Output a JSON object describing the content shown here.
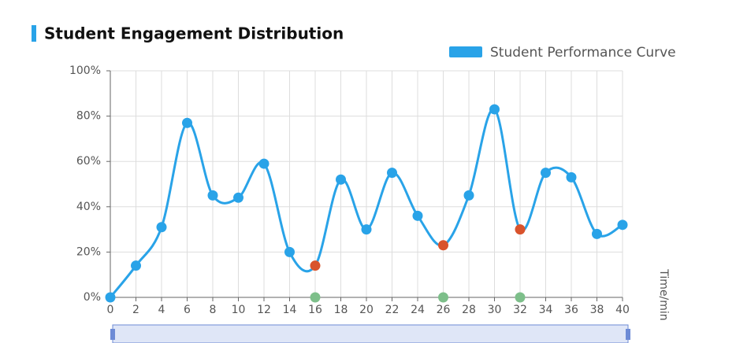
{
  "chart_data": {
    "type": "line",
    "title": "Student Engagement Distribution",
    "x_label": "Time/min",
    "x": [
      0,
      2,
      4,
      6,
      8,
      10,
      12,
      14,
      16,
      18,
      20,
      22,
      24,
      26,
      28,
      30,
      32,
      34,
      36,
      38,
      40
    ],
    "series": [
      {
        "name": "Student Performance Curve",
        "color": "#29a3e8",
        "values": [
          0,
          14,
          31,
          77,
          45,
          44,
          59,
          20,
          14,
          52,
          30,
          55,
          36,
          23,
          45,
          83,
          30,
          55,
          53,
          28,
          32
        ]
      }
    ],
    "highlights": [
      16,
      26,
      32
    ],
    "highlight_color": "#d9532c",
    "axis_marker_color": "#7dbf8a",
    "xlim": [
      0,
      40
    ],
    "xticks": [
      0,
      2,
      4,
      6,
      8,
      10,
      12,
      14,
      16,
      18,
      20,
      22,
      24,
      26,
      28,
      30,
      32,
      34,
      36,
      38,
      40
    ],
    "ylim": [
      0,
      100
    ],
    "yticks": [
      {
        "value": 0,
        "label": "0%"
      },
      {
        "value": 20,
        "label": "20%"
      },
      {
        "value": 40,
        "label": "40%"
      },
      {
        "value": 60,
        "label": "60%"
      },
      {
        "value": 80,
        "label": "80%"
      },
      {
        "value": 100,
        "label": "100%"
      }
    ],
    "grid": true,
    "legend": "top-right"
  }
}
